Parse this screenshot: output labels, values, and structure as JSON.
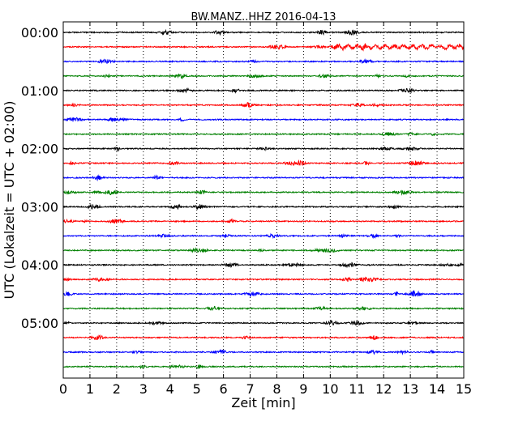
{
  "chart_data": {
    "type": "line",
    "title": "BW.MANZ..HHZ 2016-04-13",
    "xlabel": "Zeit  [min]",
    "ylabel": "UTC (Lokalzeit = UTC + 02:00)",
    "xlim": [
      0,
      15
    ],
    "x_ticks": [
      "0",
      "1",
      "2",
      "3",
      "4",
      "5",
      "6",
      "7",
      "8",
      "9",
      "10",
      "11",
      "12",
      "13",
      "14",
      "15"
    ],
    "y_ticks": [
      {
        "label": "00:00",
        "row": 0
      },
      {
        "label": "01:00",
        "row": 4
      },
      {
        "label": "02:00",
        "row": 8
      },
      {
        "label": "03:00",
        "row": 12
      },
      {
        "label": "04:00",
        "row": 16
      },
      {
        "label": "05:00",
        "row": 20
      }
    ],
    "grid": {
      "x": "dotted",
      "y": "none"
    },
    "row_count": 24,
    "row_interval_minutes": 15,
    "color_cycle": [
      "#000000",
      "#ff0000",
      "#0000ff",
      "#008000"
    ]
  }
}
